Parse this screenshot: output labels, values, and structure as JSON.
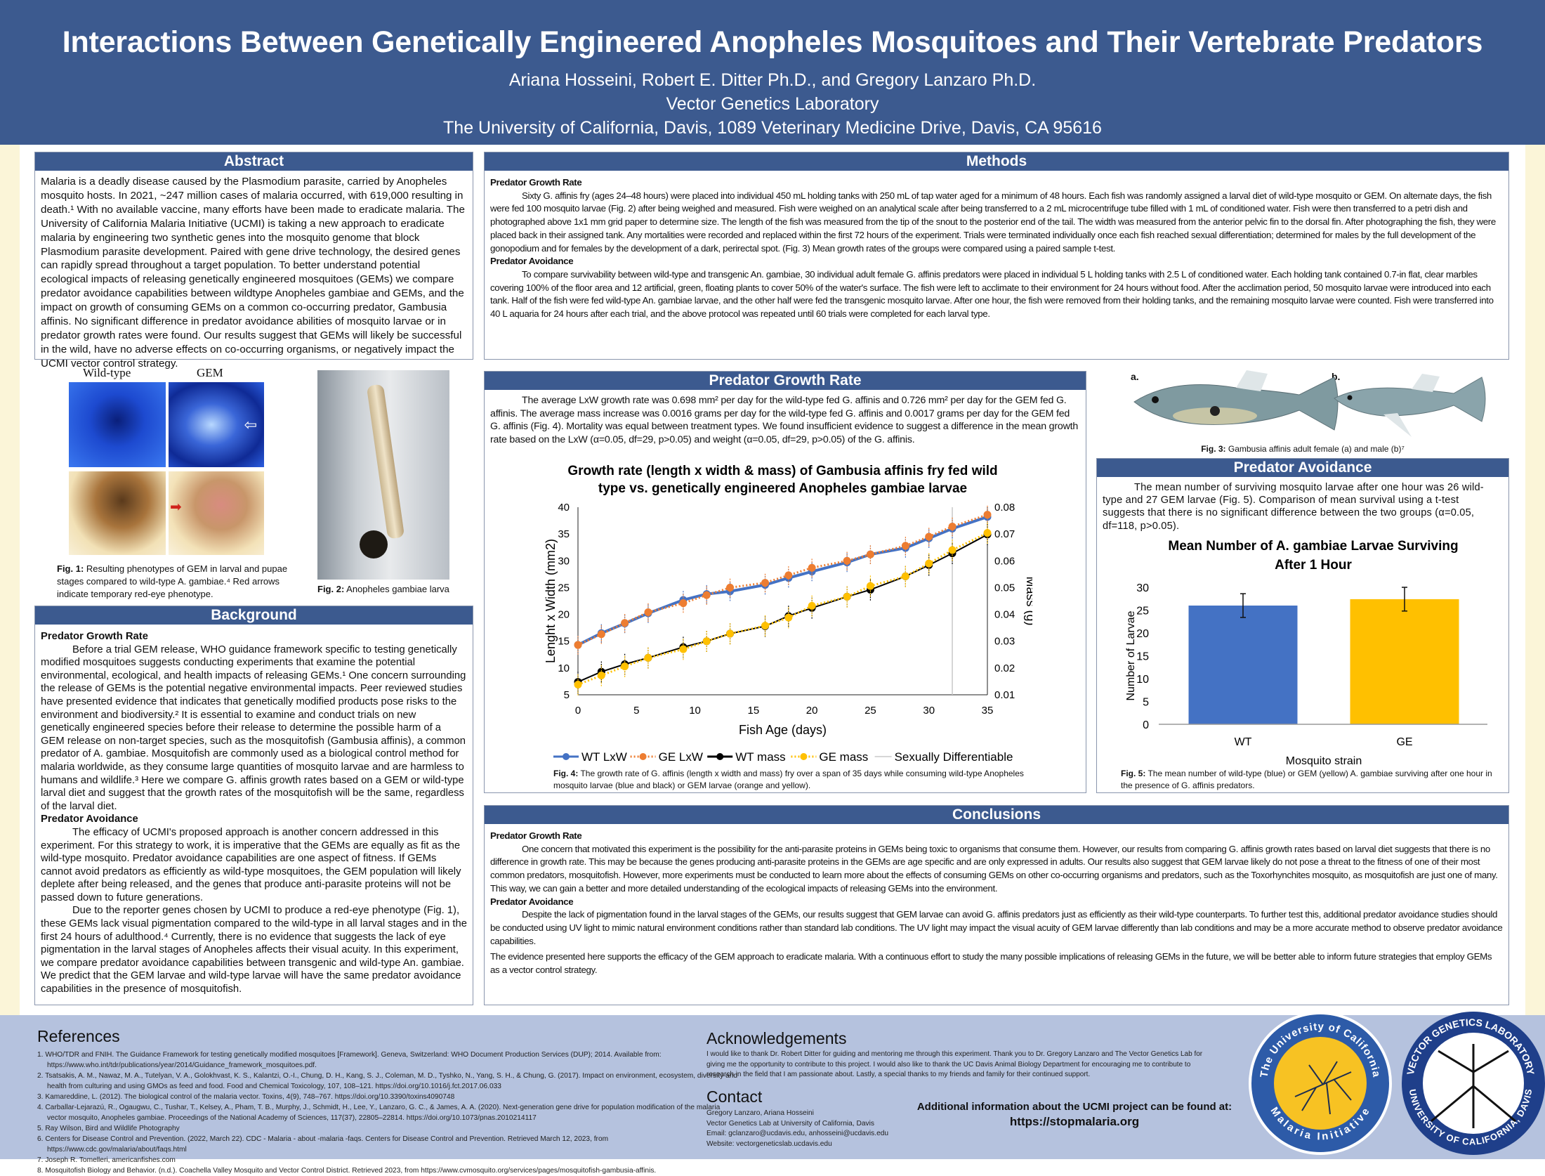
{
  "header": {
    "title": "Interactions Between Genetically Engineered Anopheles Mosquitoes and Their Vertebrate Predators",
    "authors": "Ariana Hosseini, Robert E. Ditter Ph.D., and Gregory Lanzaro Ph.D.",
    "lab": "Vector Genetics Laboratory",
    "address": "The University of California, Davis, 1089 Veterinary Medicine Drive, Davis, CA 95616"
  },
  "abstract": {
    "heading": "Abstract",
    "text": "Malaria is a deadly disease caused by the Plasmodium parasite, carried by Anopheles mosquito hosts. In 2021, ~247 million cases of malaria occurred, with 619,000 resulting in death.¹ With no available vaccine, many efforts have been made to eradicate malaria. The University of California Malaria Initiative (UCMI) is taking a new approach to eradicate malaria by engineering two synthetic genes into the mosquito genome that block Plasmodium parasite development. Paired with gene drive technology, the desired genes can rapidly spread throughout a target population. To better understand potential ecological impacts of releasing genetically engineered mosquitoes (GEMs) we compare predator avoidance capabilities between wildtype Anopheles gambiae and GEMs, and the impact on growth of consuming GEMs on a common co-occurring predator, Gambusia affinis. No significant difference in predator avoidance abilities of mosquito larvae or in predator growth rates were found. Our results suggest that GEMs will likely be successful in the wild, have no adverse effects on co-occurring organisms, or negatively impact the UCMI vector control strategy."
  },
  "fig1": {
    "label_wt": "Wild-type",
    "label_gem": "GEM",
    "caption_bold": "Fig. 1:",
    "caption": " Resulting phenotypes of GEM in larval and pupae stages compared to wild-type A. gambiae.⁴ Red arrows indicate temporary red-eye phenotype."
  },
  "fig2": {
    "caption_bold": "Fig. 2:",
    "caption": " Anopheles gambiae larva"
  },
  "background": {
    "heading": "Background",
    "sub1": "Predator Growth Rate",
    "p1": "Before a trial GEM release, WHO guidance framework specific to testing genetically modified mosquitoes suggests conducting experiments that examine the potential environmental, ecological, and health impacts of releasing GEMs.¹ One concern surrounding the release of GEMs is the potential negative environmental impacts. Peer reviewed studies have presented evidence that indicates that genetically modified products pose risks to the environment and biodiversity.² It is essential to examine and conduct trials on new genetically engineered species before their release to determine the possible harm of a GEM release on non-target species, such as the mosquitofish (Gambusia affinis), a common predator of A. gambiae. Mosquitofish are commonly used as a biological control method for malaria worldwide, as they consume large quantities of mosquito larvae and are harmless to humans and wildlife.³ Here we compare G. affinis growth rates based on a GEM or wild-type larval diet and suggest that the growth rates of the mosquitofish will be the same, regardless of the larval diet.",
    "sub2": "Predator Avoidance",
    "p2": "The efficacy of UCMI's proposed approach is another concern addressed in this experiment. For this strategy to work, it is imperative that the GEMs are equally as fit as the wild-type mosquito. Predator avoidance capabilities are one aspect of fitness. If GEMs cannot avoid predators as efficiently as wild-type mosquitoes, the GEM population will likely deplete after being released, and the genes that produce anti-parasite proteins will not be passed down to future generations.",
    "p3": "Due to the reporter genes chosen by UCMI to produce a red-eye phenotype (Fig. 1), these GEMs lack visual pigmentation compared to the wild-type in all larval stages and in the first 24 hours of adulthood.⁴ Currently, there is no evidence that suggests the lack of eye pigmentation in the larval stages of Anopheles affects their visual acuity. In this experiment, we compare predator avoidance capabilities between transgenic and wild-type An. gambiae. We predict that the GEM larvae and wild-type larvae will have the same predator avoidance capabilities in the presence of mosquitofish."
  },
  "methods": {
    "heading": "Methods",
    "sub1": "Predator Growth Rate",
    "p1": "Sixty G. affinis fry (ages 24–48 hours) were placed into individual 450 mL holding tanks with 250 mL of tap water aged for a minimum of 48 hours. Each fish was randomly assigned a larval diet of wild-type mosquito or GEM. On alternate days, the fish were fed 100 mosquito larvae (Fig. 2) after being weighed and measured. Fish were weighed on an analytical scale after being transferred to a 2 mL microcentrifuge tube filled with 1 mL of conditioned water. Fish were then transferred to a petri dish and photographed above 1x1 mm grid paper to determine size. The length of the fish was measured from the tip of the snout to the posterior end of the tail. The width was measured from the anterior pelvic fin to the dorsal fin. After photographing the fish, they were placed back in their assigned tank. Any mortalities were recorded and replaced within the first 72 hours of the experiment. Trials were terminated individually once each fish reached sexual differentiation; determined for males by the full development of the gonopodium and for females by the development of a dark, perirectal spot. (Fig. 3) Mean growth rates of the groups were compared using a paired sample t-test.",
    "sub2": "Predator Avoidance",
    "p2": "To compare survivability between wild-type and transgenic An. gambiae, 30 individual adult female G. affinis predators were placed in individual 5 L holding tanks with 2.5 L of conditioned water. Each holding tank contained 0.7-in flat, clear marbles covering 100% of the floor area and 12 artificial, green, floating plants to cover 50% of the water's surface. The fish were left to acclimate to their environment for 24 hours without food. After the acclimation period, 50 mosquito larvae were introduced into each tank. Half of the fish were fed wild-type An. gambiae larvae, and the other half were fed the transgenic mosquito larvae. After one hour, the fish were removed from their holding tanks, and the remaining mosquito larvae were counted. Fish were transferred into 40 L aquaria for 24 hours after each trial, and the above protocol was repeated until 60 trials were completed for each larval type."
  },
  "growth": {
    "heading": "Predator Growth Rate",
    "text": "The average LxW growth rate was 0.698 mm² per day for the wild-type fed G. affinis and 0.726 mm² per day for the GEM fed G. affinis. The average mass increase was 0.0016 grams per day for the wild-type fed G. affinis and 0.0017 grams per day for the GEM fed G. affinis (Fig. 4). Mortality was equal between treatment types. We found insufficient evidence to suggest a difference in the mean growth rate based on the LxW (α=0.05, df=29, p>0.05) and weight (α=0.05, df=29, p>0.05) of the G. affinis.",
    "caption_bold": "Fig. 4:",
    "caption": " The growth rate of G. affinis (length x width and mass) fry over a span of 35 days while consuming wild-type Anopheles mosquito larvae (blue and black) or GEM larvae (orange and yellow)."
  },
  "fig3": {
    "label_a": "a.",
    "label_b": "b.",
    "caption_bold": "Fig. 3:",
    "caption": " Gambusia affinis adult female (a) and male (b)⁷"
  },
  "avoidance": {
    "heading": "Predator Avoidance",
    "text": "The mean number of surviving mosquito larvae after one hour was 26 wild-type and 27 GEM larvae (Fig. 5). Comparison of mean survival using a t-test suggests that there is no significant difference between the two groups (α=0.05, df=118, p>0.05).",
    "caption_bold": "Fig. 5:",
    "caption": " The mean number of wild-type (blue) or GEM (yellow) A. gambiae surviving after one hour in the presence of G. affinis predators."
  },
  "chart_data": [
    {
      "type": "line",
      "title": [
        "Growth rate (length x width & mass) of Gambusia affinis fry fed wild",
        "type vs. genetically engineered Anopheles gambiae larvae"
      ],
      "xlabel": "Fish Age (days)",
      "ylabel": "Lenght x Width (mm2)",
      "y2label": "Mass (g)",
      "xlim": [
        0,
        35
      ],
      "ylim": [
        5,
        40
      ],
      "y2lim": [
        0.01,
        0.08
      ],
      "xticks": [
        "0",
        "5",
        "10",
        "15",
        "20",
        "25",
        "30",
        "35"
      ],
      "yticks": [
        "5",
        "10",
        "15",
        "20",
        "25",
        "30",
        "35",
        "40"
      ],
      "y2ticks": [
        "0.01",
        "0.02",
        "0.03",
        "0.04",
        "0.05",
        "0.06",
        "0.07",
        "0.08"
      ],
      "x": [
        0,
        2,
        4,
        6,
        9,
        11,
        13,
        16,
        18,
        20,
        23,
        25,
        28,
        30,
        32,
        35
      ],
      "series": [
        {
          "name": "WT LxW",
          "axis": "left",
          "color": "#4472c4",
          "style": "solid",
          "error": 1.8,
          "values": [
            14.3,
            16.5,
            18.3,
            20.2,
            22.7,
            23.8,
            24.3,
            25.5,
            26.8,
            28.0,
            29.7,
            31.2,
            32.4,
            34.2,
            36.0,
            38.2
          ]
        },
        {
          "name": "GE LxW",
          "axis": "left",
          "color": "#ed7d31",
          "style": "dotted",
          "error": 1.8,
          "values": [
            14.3,
            16.3,
            18.4,
            20.4,
            22.1,
            23.6,
            25.0,
            25.9,
            27.3,
            28.7,
            30.0,
            31.2,
            32.8,
            34.5,
            36.4,
            38.6
          ]
        },
        {
          "name": "WT mass",
          "axis": "right",
          "color": "#000000",
          "style": "solid",
          "error": 0.004,
          "values": [
            0.0148,
            0.0186,
            0.0214,
            0.0238,
            0.0278,
            0.03,
            0.0328,
            0.0356,
            0.0394,
            0.0424,
            0.0466,
            0.0492,
            0.0542,
            0.0584,
            0.0628,
            0.0698
          ]
        },
        {
          "name": "GE mass",
          "axis": "right",
          "color": "#ffc000",
          "style": "dotted",
          "error": 0.004,
          "values": [
            0.0138,
            0.0172,
            0.0206,
            0.0238,
            0.027,
            0.03,
            0.0328,
            0.0358,
            0.0388,
            0.0432,
            0.0466,
            0.0506,
            0.0542,
            0.059,
            0.064,
            0.0704
          ]
        }
      ],
      "vline": {
        "name": "Sexually Differentiable",
        "x": 32,
        "color": "#c8c8c8"
      },
      "legend": "bottom",
      "grid": false
    },
    {
      "type": "bar",
      "title": [
        "Mean Number of A. gambiae Larvae Surviving",
        "After 1 Hour"
      ],
      "xlabel": "Mosquito strain",
      "ylabel": "Number of Larvae",
      "ylim": [
        0,
        30
      ],
      "yticks": [
        "0",
        "5",
        "10",
        "15",
        "20",
        "25",
        "30"
      ],
      "categories": [
        "WT",
        "GE"
      ],
      "values": [
        26,
        27.4
      ],
      "errors": [
        2.6,
        2.6
      ],
      "colors": [
        "#4472c4",
        "#ffc000"
      ],
      "grid": false
    }
  ],
  "conclusions": {
    "heading": "Conclusions",
    "sub1": "Predator Growth Rate",
    "p1": "One concern that motivated this experiment is the possibility for the anti-parasite proteins in GEMs being toxic to organisms that consume them. However, our results from comparing G. affinis growth rates based on larval diet suggests that there is no difference in growth rate. This may be because the genes producing anti-parasite proteins in the GEMs are age specific and are only expressed in adults. Our results also suggest that GEM larvae likely do not pose a threat to the fitness of one of their most common predators, mosquitofish. However, more experiments must be conducted to learn more about the effects of consuming GEMs on other co-occurring organisms and predators, such as the Toxorhynchites mosquito, as mosquitofish are just one of many. This way, we can gain a better and more detailed understanding of the ecological impacts of releasing GEMs into the environment.",
    "sub2": "Predator Avoidance",
    "p2": "Despite the lack of pigmentation found in the larval stages of the GEMs, our results suggest that GEM larvae can avoid G. affinis predators just as efficiently as their wild-type counterparts. To further test this,  additional predator avoidance studies should be conducted using UV light to mimic natural environment conditions rather than standard lab conditions. The UV light may impact the visual acuity of GEM larvae differently than lab conditions and may be a more accurate method to observe predator avoidance capabilities.",
    "p3": "The evidence presented here supports the efficacy of the GEM approach to eradicate malaria. With a continuous effort to study the many possible implications of releasing GEMs in the future, we will be better able to inform future strategies that employ GEMs as a vector control strategy."
  },
  "references": {
    "heading": "References",
    "items": [
      "1. WHO/TDR and FNIH. The Guidance Framework for testing genetically modified mosquitoes [Framework]. Geneva, Switzerland: WHO Document Production Services (DUP); 2014. Available from: https://www.who.int/tdr/publications/year/2014/Guidance_framework_mosquitoes.pdf.",
      "2. Tsatsakis, A. M., Nawaz, M. A., Tutelyan, V. A., Golokhvast, K. S., Kalantzi, O.-I., Chung, D. H., Kang, S. J., Coleman, M. D., Tyshko, N., Yang, S. H., & Chung, G. (2017). Impact on environment, ecosystem, diversity and health from culturing and using GMOs as feed and food. Food and Chemical Toxicology, 107, 108–121. https://doi.org/10.1016/j.fct.2017.06.033",
      "3. Kamareddine, L. (2012). The biological control of the malaria vector. Toxins, 4(9), 748–767. https://doi.org/10.3390/toxins4090748",
      "4. Carballar-Lejarazú, R., Ogaugwu, C., Tushar, T., Kelsey, A., Pham, T. B., Murphy, J., Schmidt, H., Lee, Y., Lanzaro, G. C., & James, A. A. (2020). Next-generation gene drive for population modification of the malaria vector mosquito, Anopheles gambiae. Proceedings of the National Academy of Sciences, 117(37), 22805–22814. https://doi.org/10.1073/pnas.2010214117",
      "5. Ray Wilson, Bird and Wildlife Photography",
      "6. Centers for Disease Control and Prevention. (2022, March 22). CDC - Malaria - about -malaria -faqs. Centers for Disease Control and Prevention. Retrieved March 12, 2023, from https://www.cdc.gov/malaria/about/faqs.html",
      "7. Joseph R. Tomelleri, americanfishes.com",
      "8. Mosquitofish Biology and Behavior. (n.d.). Coachella Valley Mosquito and Vector Control District. Retrieved 2023, from https://www.cvmosquito.org/services/pages/mosquitofish-gambusia-affinis."
    ]
  },
  "acknowledgements": {
    "heading": "Acknowledgements",
    "text": "I would like to thank Dr. Robert Ditter for guiding and mentoring me through this experiment. Thank you to Dr. Gregory Lanzaro and The Vector Genetics Lab for giving me the opportunity to contribute to this project. I would also like to thank the UC Davis Animal Biology Department for encouraging me to contribute to research in the field that I am passionate about. Lastly, a special thanks to my friends and family for their continued support."
  },
  "contact": {
    "heading": "Contact",
    "lines": [
      "Gregory Lanzaro, Ariana Hosseini",
      "Vector Genetics Lab at University of California, Davis",
      "Email: gclanzaro@ucdavis.edu, anhosseini@ucdavis.edu",
      "Website: vectorgeneticslab.ucdavis.edu"
    ]
  },
  "more_info": {
    "text": "Additional information about the UCMI project can be found at:",
    "url": "https://stopmalaria.org"
  },
  "logos": {
    "ucmi_top": "The University of California",
    "ucmi_bottom": "Malaria Initiative",
    "vgl_top": "VECTOR GENETICS LABORATORY",
    "vgl_bottom": "UNIVERSITY OF CALIFORNIA, DAVIS"
  },
  "colors": {
    "header": "#3c5a8f",
    "footer": "#b5c2de",
    "wt": "#4472c4",
    "ge_lxw": "#ed7d31",
    "ge_mass": "#ffc000"
  }
}
